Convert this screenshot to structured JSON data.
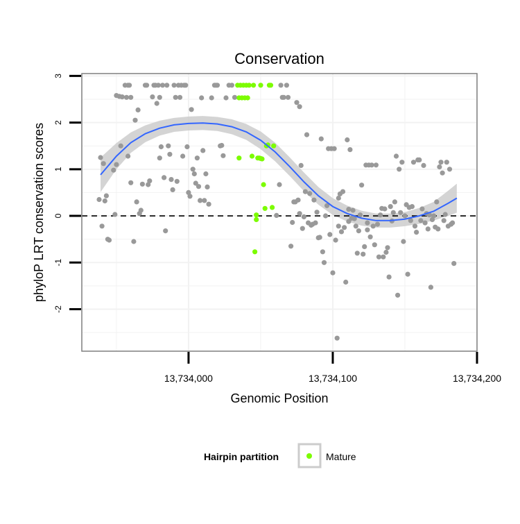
{
  "chart_data": {
    "type": "scatter",
    "title": "Conservation",
    "xlabel": "Genomic Position",
    "ylabel": "phyloP LRT conservation scores",
    "xlim": [
      13733926,
      13734200
    ],
    "ylim": [
      -2.9,
      3.05
    ],
    "x_ticks": [
      {
        "value": 13734000,
        "label": "13,734,000"
      },
      {
        "value": 13734100,
        "label": "13,734,100"
      },
      {
        "value": 13734200,
        "label": "13,734,200"
      }
    ],
    "y_ticks": [
      {
        "value": 3,
        "label": "3"
      },
      {
        "value": 2,
        "label": "2"
      },
      {
        "value": 1,
        "label": "1"
      },
      {
        "value": 0,
        "label": "0"
      },
      {
        "value": -1,
        "label": "-1"
      },
      {
        "value": -2,
        "label": "-2"
      }
    ],
    "grid": true,
    "reference_line": {
      "y": 0,
      "style": "dashed"
    },
    "legend": {
      "title": "Hairpin partition",
      "position": "bottom",
      "entries": [
        {
          "label": "Mature",
          "color": "#7cfc00"
        }
      ]
    },
    "colors": {
      "other": "#999999",
      "mature": "#7cfc00",
      "smooth": "#3366ff",
      "band": "#cccccc",
      "panel_border": "#7f7f7f"
    },
    "series": [
      {
        "name": "Other",
        "points": [
          [
            13733939,
            1.25
          ],
          [
            13733941,
            1.12
          ],
          [
            13733940,
            -0.22
          ],
          [
            13733938,
            0.35
          ],
          [
            13733942,
            0.32
          ],
          [
            13733943,
            0.43
          ],
          [
            13733944,
            -0.5
          ],
          [
            13733945,
            -0.52
          ],
          [
            13733948,
            0.98
          ],
          [
            13733949,
            0.03
          ],
          [
            13733950,
            1.1
          ],
          [
            13733950,
            2.58
          ],
          [
            13733952,
            2.56
          ],
          [
            13733954,
            2.55
          ],
          [
            13733953,
            1.5
          ],
          [
            13733956,
            2.8
          ],
          [
            13733957,
            2.54
          ],
          [
            13733958,
            2.8
          ],
          [
            13733959,
            2.8
          ],
          [
            13733960,
            2.54
          ],
          [
            13733958,
            1.28
          ],
          [
            13733960,
            0.71
          ],
          [
            13733962,
            -0.55
          ],
          [
            13733963,
            2.05
          ],
          [
            13733965,
            2.27
          ],
          [
            13733964,
            0.3
          ],
          [
            13733966,
            0.05
          ],
          [
            13733967,
            0.12
          ],
          [
            13733968,
            0.68
          ],
          [
            13733970,
            2.8
          ],
          [
            13733971,
            2.8
          ],
          [
            13733972,
            0.67
          ],
          [
            13733973,
            0.75
          ],
          [
            13733975,
            2.55
          ],
          [
            13733976,
            2.8
          ],
          [
            13733977,
            2.8
          ],
          [
            13733978,
            2.41
          ],
          [
            13733979,
            2.8
          ],
          [
            13733980,
            2.54
          ],
          [
            13733980,
            1.24
          ],
          [
            13733981,
            1.48
          ],
          [
            13733982,
            2.8
          ],
          [
            13733983,
            0.82
          ],
          [
            13733984,
            -0.32
          ],
          [
            13733985,
            2.8
          ],
          [
            13733986,
            1.5
          ],
          [
            13733987,
            1.32
          ],
          [
            13733988,
            0.78
          ],
          [
            13733989,
            0.56
          ],
          [
            13733990,
            2.8
          ],
          [
            13733991,
            2.54
          ],
          [
            13733992,
            0.74
          ],
          [
            13733993,
            2.8
          ],
          [
            13733994,
            2.54
          ],
          [
            13733995,
            2.8
          ],
          [
            13733996,
            1.28
          ],
          [
            13733997,
            2.8
          ],
          [
            13733998,
            2.8
          ],
          [
            13733999,
            1.48
          ],
          [
            13734000,
            0.5
          ],
          [
            13734001,
            0.42
          ],
          [
            13734002,
            2.28
          ],
          [
            13734003,
            1.0
          ],
          [
            13734004,
            0.9
          ],
          [
            13734005,
            0.7
          ],
          [
            13734006,
            1.24
          ],
          [
            13734007,
            0.63
          ],
          [
            13734008,
            0.33
          ],
          [
            13734009,
            2.53
          ],
          [
            13734010,
            1.4
          ],
          [
            13734011,
            0.33
          ],
          [
            13734012,
            0.9
          ],
          [
            13734013,
            0.62
          ],
          [
            13734014,
            0.25
          ],
          [
            13734016,
            2.53
          ],
          [
            13734018,
            2.8
          ],
          [
            13734019,
            2.8
          ],
          [
            13734020,
            2.8
          ],
          [
            13734022,
            1.5
          ],
          [
            13734023,
            1.51
          ],
          [
            13734024,
            1.29
          ],
          [
            13734026,
            2.53
          ],
          [
            13734028,
            2.8
          ],
          [
            13734030,
            2.8
          ],
          [
            13734032,
            2.54
          ],
          [
            13734061,
            0.01
          ],
          [
            13734063,
            0.67
          ],
          [
            13734064,
            2.8
          ],
          [
            13734065,
            2.54
          ],
          [
            13734066,
            2.54
          ],
          [
            13734068,
            2.8
          ],
          [
            13734069,
            2.54
          ],
          [
            13734071,
            -0.65
          ],
          [
            13734072,
            -0.14
          ],
          [
            13734073,
            0.3
          ],
          [
            13734074,
            0.3
          ],
          [
            13734075,
            2.43
          ],
          [
            13734076,
            0.34
          ],
          [
            13734077,
            0.05
          ],
          [
            13734077,
            2.34
          ],
          [
            13734078,
            1.08
          ],
          [
            13734079,
            -0.27
          ],
          [
            13734080,
            -0.02
          ],
          [
            13734081,
            0.52
          ],
          [
            13734082,
            1.74
          ],
          [
            13734083,
            -0.15
          ],
          [
            13734084,
            0.48
          ],
          [
            13734085,
            -0.2
          ],
          [
            13734086,
            -0.18
          ],
          [
            13734087,
            0.34
          ],
          [
            13734088,
            -0.15
          ],
          [
            13734089,
            0.08
          ],
          [
            13734090,
            -0.47
          ],
          [
            13734091,
            -0.46
          ],
          [
            13734092,
            1.65
          ],
          [
            13734093,
            -0.77
          ],
          [
            13734094,
            -1.0
          ],
          [
            13734095,
            0.0
          ],
          [
            13734096,
            0.22
          ],
          [
            13734097,
            1.44
          ],
          [
            13734098,
            -0.4
          ],
          [
            13734099,
            1.44
          ],
          [
            13734100,
            -1.22
          ],
          [
            13734101,
            1.44
          ],
          [
            13734102,
            -0.52
          ],
          [
            13734103,
            -2.62
          ],
          [
            13734104,
            0.38
          ],
          [
            13734104,
            -0.22
          ],
          [
            13734105,
            0.47
          ],
          [
            13734106,
            -0.34
          ],
          [
            13734107,
            0.52
          ],
          [
            13734108,
            -0.25
          ],
          [
            13734109,
            -1.42
          ],
          [
            13734110,
            1.63
          ],
          [
            13734111,
            -0.12
          ],
          [
            13734111,
            0.14
          ],
          [
            13734112,
            1.42
          ],
          [
            13734113,
            -0.05
          ],
          [
            13734114,
            0.12
          ],
          [
            13734115,
            -0.06
          ],
          [
            13734116,
            -0.22
          ],
          [
            13734117,
            -0.8
          ],
          [
            13734118,
            -0.32
          ],
          [
            13734119,
            0.02
          ],
          [
            13734120,
            0.66
          ],
          [
            13734121,
            -0.82
          ],
          [
            13734122,
            -0.66
          ],
          [
            13734123,
            1.09
          ],
          [
            13734124,
            -0.3
          ],
          [
            13734124,
            -0.15
          ],
          [
            13734125,
            1.09
          ],
          [
            13734126,
            -0.45
          ],
          [
            13734127,
            1.09
          ],
          [
            13734128,
            -0.22
          ],
          [
            13734129,
            -0.62
          ],
          [
            13734130,
            1.09
          ],
          [
            13734131,
            -0.18
          ],
          [
            13734132,
            -0.88
          ],
          [
            13734133,
            0.02
          ],
          [
            13734134,
            0.16
          ],
          [
            13734135,
            -0.88
          ],
          [
            13734136,
            0.15
          ],
          [
            13734137,
            -0.78
          ],
          [
            13734138,
            -0.68
          ],
          [
            13734139,
            -1.31
          ],
          [
            13734140,
            0.2
          ],
          [
            13734141,
            -0.11
          ],
          [
            13734142,
            0.07
          ],
          [
            13734143,
            0.3
          ],
          [
            13734144,
            1.28
          ],
          [
            13734145,
            -1.7
          ],
          [
            13734146,
            1.0
          ],
          [
            13734147,
            0.07
          ],
          [
            13734148,
            1.15
          ],
          [
            13734149,
            -0.55
          ],
          [
            13734150,
            0.0
          ],
          [
            13734151,
            0.24
          ],
          [
            13734152,
            -1.25
          ],
          [
            13734153,
            0.18
          ],
          [
            13734154,
            -0.1
          ],
          [
            13734155,
            0.2
          ],
          [
            13734156,
            1.15
          ],
          [
            13734157,
            -0.22
          ],
          [
            13734158,
            -0.35
          ],
          [
            13734159,
            1.2
          ],
          [
            13734160,
            1.2
          ],
          [
            13734161,
            -0.1
          ],
          [
            13734162,
            0.15
          ],
          [
            13734163,
            1.08
          ],
          [
            13734164,
            -0.15
          ],
          [
            13734165,
            0.05
          ],
          [
            13734166,
            -0.28
          ],
          [
            13734167,
            0.02
          ],
          [
            13734168,
            -1.53
          ],
          [
            13734169,
            -0.08
          ],
          [
            13734170,
            0.0
          ],
          [
            13734171,
            -0.24
          ],
          [
            13734172,
            0.3
          ],
          [
            13734173,
            -0.28
          ],
          [
            13734174,
            1.05
          ],
          [
            13734175,
            1.15
          ],
          [
            13734176,
            0.92
          ],
          [
            13734177,
            -0.1
          ],
          [
            13734178,
            0.03
          ],
          [
            13734179,
            1.15
          ],
          [
            13734180,
            -0.22
          ],
          [
            13734181,
            1.0
          ],
          [
            13734182,
            -0.18
          ],
          [
            13734183,
            -0.15
          ],
          [
            13734184,
            -1.02
          ]
        ]
      },
      {
        "name": "Mature",
        "points": [
          [
            13734034,
            2.8
          ],
          [
            13734035,
            2.53
          ],
          [
            13734036,
            2.8
          ],
          [
            13734037,
            2.53
          ],
          [
            13734038,
            2.8
          ],
          [
            13734039,
            2.53
          ],
          [
            13734040,
            2.8
          ],
          [
            13734041,
            2.53
          ],
          [
            13734042,
            2.8
          ],
          [
            13734044,
            1.28
          ],
          [
            13734045,
            2.8
          ],
          [
            13734046,
            -0.77
          ],
          [
            13734047,
            -0.08
          ],
          [
            13734047,
            0.02
          ],
          [
            13734048,
            1.24
          ],
          [
            13734049,
            1.24
          ],
          [
            13734050,
            2.8
          ],
          [
            13734050,
            1.23
          ],
          [
            13734051,
            1.22
          ],
          [
            13734052,
            0.67
          ],
          [
            13734053,
            0.16
          ],
          [
            13734054,
            1.5
          ],
          [
            13734055,
            1.52
          ],
          [
            13734056,
            2.8
          ],
          [
            13734057,
            2.8
          ],
          [
            13734058,
            0.18
          ],
          [
            13734059,
            1.5
          ],
          [
            13734035,
            1.24
          ]
        ]
      }
    ],
    "smooth": {
      "x": [
        13733939,
        13733950,
        13733960,
        13733970,
        13733980,
        13733990,
        13734000,
        13734010,
        13734020,
        13734030,
        13734040,
        13734050,
        13734060,
        13734070,
        13734080,
        13734090,
        13734100,
        13734110,
        13734120,
        13734130,
        13734140,
        13734150,
        13734160,
        13734170,
        13734180,
        13734186
      ],
      "y": [
        0.88,
        1.28,
        1.57,
        1.76,
        1.88,
        1.95,
        1.98,
        1.99,
        1.97,
        1.91,
        1.8,
        1.62,
        1.37,
        1.06,
        0.73,
        0.43,
        0.2,
        0.05,
        -0.05,
        -0.1,
        -0.1,
        -0.07,
        0.0,
        0.1,
        0.27,
        0.38
      ],
      "band": [
        0.37,
        0.28,
        0.22,
        0.18,
        0.16,
        0.15,
        0.15,
        0.15,
        0.15,
        0.16,
        0.17,
        0.19,
        0.2,
        0.2,
        0.2,
        0.19,
        0.18,
        0.17,
        0.16,
        0.15,
        0.15,
        0.15,
        0.17,
        0.2,
        0.27,
        0.31
      ]
    }
  }
}
